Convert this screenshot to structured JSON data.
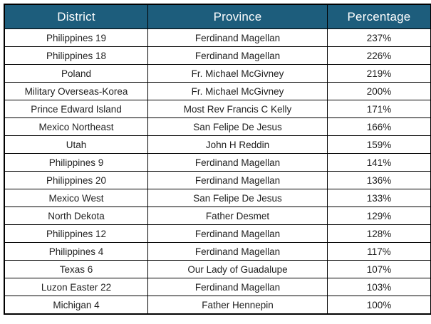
{
  "theme": {
    "header_bg": "#1d5d7c",
    "header_text": "#ffffff",
    "body_text": "#1f1f1f",
    "border": "#000000"
  },
  "chart_data": {
    "type": "table",
    "title": "",
    "columns": [
      "District",
      "Province",
      "Percentage"
    ],
    "rows": [
      {
        "district": "Philippines 19",
        "province": "Ferdinand Magellan",
        "percentage": "237%"
      },
      {
        "district": "Philippines 18",
        "province": "Ferdinand Magellan",
        "percentage": "226%"
      },
      {
        "district": "Poland",
        "province": "Fr. Michael McGivney",
        "percentage": "219%"
      },
      {
        "district": "Military Overseas-Korea",
        "province": "Fr. Michael McGivney",
        "percentage": "200%"
      },
      {
        "district": "Prince Edward Island",
        "province": "Most Rev Francis C Kelly",
        "percentage": "171%"
      },
      {
        "district": "Mexico Northeast",
        "province": "San Felipe De Jesus",
        "percentage": "166%"
      },
      {
        "district": "Utah",
        "province": "John H Reddin",
        "percentage": "159%"
      },
      {
        "district": "Philippines 9",
        "province": "Ferdinand Magellan",
        "percentage": "141%"
      },
      {
        "district": "Philippines 20",
        "province": "Ferdinand Magellan",
        "percentage": "136%"
      },
      {
        "district": "Mexico West",
        "province": "San Felipe De Jesus",
        "percentage": "133%"
      },
      {
        "district": "North Dekota",
        "province": "Father Desmet",
        "percentage": "129%"
      },
      {
        "district": "Philippines 12",
        "province": "Ferdinand Magellan",
        "percentage": "128%"
      },
      {
        "district": "Philippines 4",
        "province": "Ferdinand Magellan",
        "percentage": "117%"
      },
      {
        "district": "Texas 6",
        "province": "Our Lady of Guadalupe",
        "percentage": "107%"
      },
      {
        "district": "Luzon Easter 22",
        "province": "Ferdinand Magellan",
        "percentage": "103%"
      },
      {
        "district": "Michigan 4",
        "province": "Father Hennepin",
        "percentage": "100%"
      }
    ]
  }
}
